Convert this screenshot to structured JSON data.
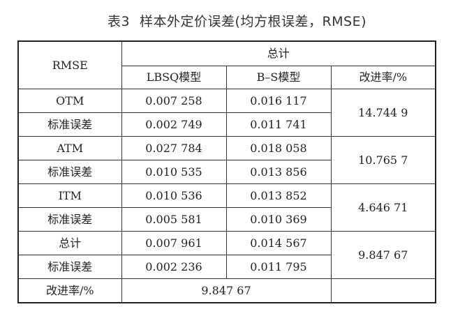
{
  "caption": {
    "label": "表3",
    "title": "样本外定价误差(均方根误差，RMSE)"
  },
  "table": {
    "header": {
      "row_label": "RMSE",
      "group_label": "总计",
      "columns": [
        "LBSQ模型",
        "B–S模型",
        "改进率/%"
      ]
    },
    "groups": [
      {
        "name": "OTM",
        "lbsq": "0.007 258",
        "bs": "0.016 117",
        "se_label": "标准误差",
        "se_lbsq": "0.002 749",
        "se_bs": "0.011 741",
        "improvement": "14.744 9"
      },
      {
        "name": "ATM",
        "lbsq": "0.027 784",
        "bs": "0.018 058",
        "se_label": "标准误差",
        "se_lbsq": "0.010 535",
        "se_bs": "0.013 856",
        "improvement": "10.765 7"
      },
      {
        "name": "ITM",
        "lbsq": "0.010 536",
        "bs": "0.013 852",
        "se_label": "标准误差",
        "se_lbsq": "0.005 581",
        "se_bs": "0.010 369",
        "improvement": "4.646 71"
      },
      {
        "name": "总计",
        "lbsq": "0.007 961",
        "bs": "0.014 567",
        "se_label": "标准误差",
        "se_lbsq": "0.002 236",
        "se_bs": "0.011 795",
        "improvement": "9.847 67"
      }
    ],
    "footer": {
      "label": "改进率/%",
      "value": "9.847 67",
      "last": ""
    }
  }
}
